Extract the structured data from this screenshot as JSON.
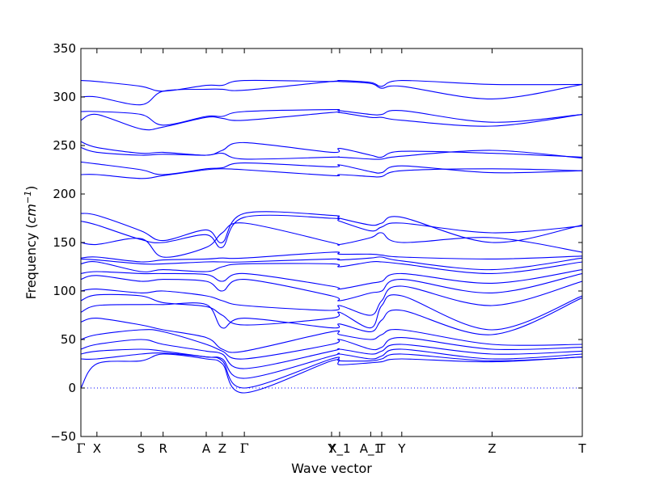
{
  "chart_data": {
    "type": "line",
    "title": "",
    "xlabel": "Wave vector",
    "ylabel": {
      "prefix": "Frequency (",
      "unit_base": "cm",
      "unit_exp": "−1",
      "suffix": ")"
    },
    "ylim": [
      -50,
      350
    ],
    "yticks": [
      -50,
      0,
      50,
      100,
      150,
      200,
      250,
      300,
      350
    ],
    "ytick_labels": [
      "−50",
      "0",
      "50",
      "100",
      "150",
      "200",
      "250",
      "300",
      "350"
    ],
    "xlim": [
      0,
      1
    ],
    "high_symmetry_points": [
      {
        "label": "Γ",
        "x": 0.0,
        "symbol": true
      },
      {
        "label": "X",
        "x": 0.032
      },
      {
        "label": "S",
        "x": 0.12
      },
      {
        "label": "R",
        "x": 0.164
      },
      {
        "label": "A",
        "x": 0.25
      },
      {
        "label": "Z",
        "x": 0.282
      },
      {
        "label": "Γ",
        "x": 0.326,
        "symbol": true
      },
      {
        "label": "Y",
        "x": 0.5
      },
      {
        "label": "X_1",
        "x": 0.516
      },
      {
        "label": "A_1",
        "x": 0.578
      },
      {
        "label": "T",
        "x": 0.6
      },
      {
        "label": "Y",
        "x": 0.64
      },
      {
        "label": "Z",
        "x": 0.82
      },
      {
        "label": "T",
        "x": 1.0
      }
    ],
    "zero_line": {
      "y": 0,
      "style": "dotted",
      "color": "#0000ff"
    },
    "line_color": "#0000ff",
    "series": [
      {
        "x": [
          0,
          0.032,
          0.12,
          0.164,
          0.25,
          0.282,
          0.326,
          0.5,
          0.516,
          0.578,
          0.6,
          0.64,
          0.82,
          1.0
        ],
        "y": [
          317,
          316,
          311,
          306,
          312,
          312,
          317,
          316,
          317,
          315,
          311,
          317,
          313,
          313
        ]
      },
      {
        "x": [
          0,
          0.032,
          0.12,
          0.164,
          0.25,
          0.282,
          0.326,
          0.5,
          0.516,
          0.578,
          0.6,
          0.64,
          0.82,
          1.0
        ],
        "y": [
          300,
          300,
          292,
          306,
          308,
          308,
          307,
          316,
          316,
          314,
          309,
          311,
          298,
          313
        ]
      },
      {
        "x": [
          0,
          0.032,
          0.12,
          0.164,
          0.25,
          0.282,
          0.326,
          0.5,
          0.516,
          0.578,
          0.6,
          0.64,
          0.82,
          1.0
        ],
        "y": [
          285,
          285,
          282,
          271,
          280,
          280,
          285,
          287,
          286,
          282,
          282,
          286,
          274,
          282
        ]
      },
      {
        "x": [
          0,
          0.032,
          0.12,
          0.164,
          0.25,
          0.282,
          0.326,
          0.5,
          0.516,
          0.578,
          0.6,
          0.64,
          0.82,
          1.0
        ],
        "y": [
          276,
          282,
          267,
          269,
          279,
          278,
          276,
          284,
          284,
          279,
          279,
          276,
          270,
          282
        ]
      },
      {
        "x": [
          0,
          0.032,
          0.12,
          0.164,
          0.25,
          0.282,
          0.326,
          0.5,
          0.516,
          0.578,
          0.6,
          0.64,
          0.82,
          1.0
        ],
        "y": [
          254,
          248,
          242,
          243,
          240,
          245,
          253,
          243,
          247,
          240,
          238,
          244,
          242,
          238
        ]
      },
      {
        "x": [
          0,
          0.032,
          0.12,
          0.164,
          0.25,
          0.282,
          0.326,
          0.5,
          0.516,
          0.578,
          0.6,
          0.64,
          0.82,
          1.0
        ],
        "y": [
          248,
          243,
          240,
          241,
          240,
          242,
          236,
          238,
          238,
          236,
          236,
          239,
          245,
          237
        ]
      },
      {
        "x": [
          0,
          0.032,
          0.12,
          0.164,
          0.25,
          0.282,
          0.326,
          0.5,
          0.516,
          0.578,
          0.6,
          0.64,
          0.82,
          1.0
        ],
        "y": [
          233,
          231,
          225,
          220,
          226,
          227,
          232,
          228,
          230,
          223,
          222,
          229,
          222,
          224
        ]
      },
      {
        "x": [
          0,
          0.032,
          0.12,
          0.164,
          0.25,
          0.282,
          0.326,
          0.5,
          0.516,
          0.578,
          0.6,
          0.64,
          0.82,
          1.0
        ],
        "y": [
          220,
          220,
          216,
          219,
          225,
          226,
          225,
          219,
          220,
          218,
          218,
          224,
          226,
          224
        ]
      },
      {
        "x": [
          0,
          0.032,
          0.12,
          0.164,
          0.25,
          0.282,
          0.326,
          0.5,
          0.516,
          0.578,
          0.6,
          0.64,
          0.82,
          1.0
        ],
        "y": [
          180,
          178,
          162,
          152,
          163,
          150,
          180,
          178,
          175,
          168,
          170,
          176,
          150,
          168
        ]
      },
      {
        "x": [
          0,
          0.032,
          0.12,
          0.164,
          0.25,
          0.282,
          0.326,
          0.5,
          0.516,
          0.578,
          0.6,
          0.64,
          0.82,
          1.0
        ],
        "y": [
          172,
          168,
          153,
          150,
          158,
          145,
          176,
          175,
          172,
          162,
          166,
          170,
          160,
          167
        ]
      },
      {
        "x": [
          0,
          0.032,
          0.12,
          0.164,
          0.25,
          0.282,
          0.326,
          0.5,
          0.516,
          0.578,
          0.6,
          0.64,
          0.82,
          1.0
        ],
        "y": [
          150,
          148,
          154,
          135,
          145,
          160,
          170,
          150,
          148,
          155,
          160,
          150,
          155,
          140
        ]
      },
      {
        "x": [
          0,
          0.032,
          0.12,
          0.164,
          0.25,
          0.282,
          0.326,
          0.5,
          0.516,
          0.578,
          0.6,
          0.64,
          0.82,
          1.0
        ],
        "y": [
          134,
          135,
          130,
          132,
          133,
          134,
          134,
          140,
          138,
          138,
          137,
          135,
          133,
          136
        ]
      },
      {
        "x": [
          0,
          0.032,
          0.12,
          0.164,
          0.25,
          0.282,
          0.326,
          0.5,
          0.516,
          0.578,
          0.6,
          0.64,
          0.82,
          1.0
        ],
        "y": [
          133,
          132,
          128,
          128,
          130,
          130,
          130,
          133,
          132,
          134,
          135,
          131,
          122,
          134
        ]
      },
      {
        "x": [
          0,
          0.032,
          0.12,
          0.164,
          0.25,
          0.282,
          0.326,
          0.5,
          0.516,
          0.578,
          0.6,
          0.64,
          0.82,
          1.0
        ],
        "y": [
          128,
          130,
          120,
          122,
          120,
          125,
          128,
          128,
          125,
          130,
          130,
          128,
          118,
          130
        ]
      },
      {
        "x": [
          0,
          0.032,
          0.12,
          0.164,
          0.25,
          0.282,
          0.326,
          0.5,
          0.516,
          0.578,
          0.6,
          0.64,
          0.82,
          1.0
        ],
        "y": [
          118,
          120,
          118,
          118,
          117,
          110,
          118,
          105,
          102,
          108,
          110,
          118,
          108,
          122
        ]
      },
      {
        "x": [
          0,
          0.032,
          0.12,
          0.164,
          0.25,
          0.282,
          0.326,
          0.5,
          0.516,
          0.578,
          0.6,
          0.64,
          0.82,
          1.0
        ],
        "y": [
          112,
          116,
          110,
          112,
          110,
          100,
          112,
          95,
          90,
          98,
          100,
          112,
          98,
          118
        ]
      },
      {
        "x": [
          0,
          0.032,
          0.12,
          0.164,
          0.25,
          0.282,
          0.326,
          0.5,
          0.516,
          0.578,
          0.6,
          0.64,
          0.82,
          1.0
        ],
        "y": [
          100,
          102,
          98,
          100,
          95,
          90,
          85,
          80,
          85,
          75,
          90,
          105,
          85,
          110
        ]
      },
      {
        "x": [
          0,
          0.032,
          0.12,
          0.164,
          0.25,
          0.282,
          0.326,
          0.5,
          0.516,
          0.578,
          0.6,
          0.64,
          0.82,
          1.0
        ],
        "y": [
          90,
          96,
          95,
          88,
          84,
          75,
          65,
          72,
          78,
          62,
          85,
          95,
          60,
          95
        ]
      },
      {
        "x": [
          0,
          0.032,
          0.12,
          0.164,
          0.25,
          0.282,
          0.326,
          0.5,
          0.516,
          0.578,
          0.6,
          0.64,
          0.82,
          1.0
        ],
        "y": [
          78,
          85,
          86,
          86,
          86,
          62,
          72,
          62,
          66,
          58,
          70,
          80,
          55,
          93
        ]
      },
      {
        "x": [
          0,
          0.032,
          0.12,
          0.164,
          0.25,
          0.282,
          0.326,
          0.5,
          0.516,
          0.578,
          0.6,
          0.64,
          0.82,
          1.0
        ],
        "y": [
          68,
          72,
          65,
          60,
          52,
          40,
          38,
          58,
          55,
          50,
          55,
          60,
          45,
          45
        ]
      },
      {
        "x": [
          0,
          0.032,
          0.12,
          0.164,
          0.25,
          0.282,
          0.326,
          0.5,
          0.516,
          0.578,
          0.6,
          0.64,
          0.82,
          1.0
        ],
        "y": [
          50,
          55,
          60,
          58,
          45,
          38,
          30,
          45,
          50,
          40,
          42,
          52,
          40,
          42
        ]
      },
      {
        "x": [
          0,
          0.032,
          0.12,
          0.164,
          0.25,
          0.282,
          0.326,
          0.5,
          0.516,
          0.578,
          0.6,
          0.64,
          0.82,
          1.0
        ],
        "y": [
          40,
          45,
          50,
          45,
          38,
          35,
          20,
          38,
          40,
          35,
          38,
          45,
          35,
          38
        ]
      },
      {
        "x": [
          0,
          0.032,
          0.12,
          0.164,
          0.25,
          0.282,
          0.326,
          0.5,
          0.516,
          0.578,
          0.6,
          0.64,
          0.82,
          1.0
        ],
        "y": [
          35,
          38,
          40,
          38,
          32,
          30,
          10,
          33,
          35,
          30,
          33,
          40,
          30,
          35
        ]
      },
      {
        "x": [
          0,
          0.032,
          0.12,
          0.164,
          0.25,
          0.282,
          0.326,
          0.5,
          0.516,
          0.578,
          0.6,
          0.64,
          0.82,
          1.0
        ],
        "y": [
          30,
          30,
          35,
          36,
          32,
          28,
          0,
          30,
          28,
          28,
          30,
          35,
          28,
          32
        ]
      },
      {
        "x": [
          0,
          0.032,
          0.12,
          0.164,
          0.25,
          0.282,
          0.326,
          0.5,
          0.516,
          0.578,
          0.6,
          0.64,
          0.82,
          1.0
        ],
        "y": [
          0,
          25,
          28,
          35,
          30,
          25,
          -5,
          28,
          24,
          26,
          27,
          30,
          27,
          32
        ]
      }
    ]
  }
}
